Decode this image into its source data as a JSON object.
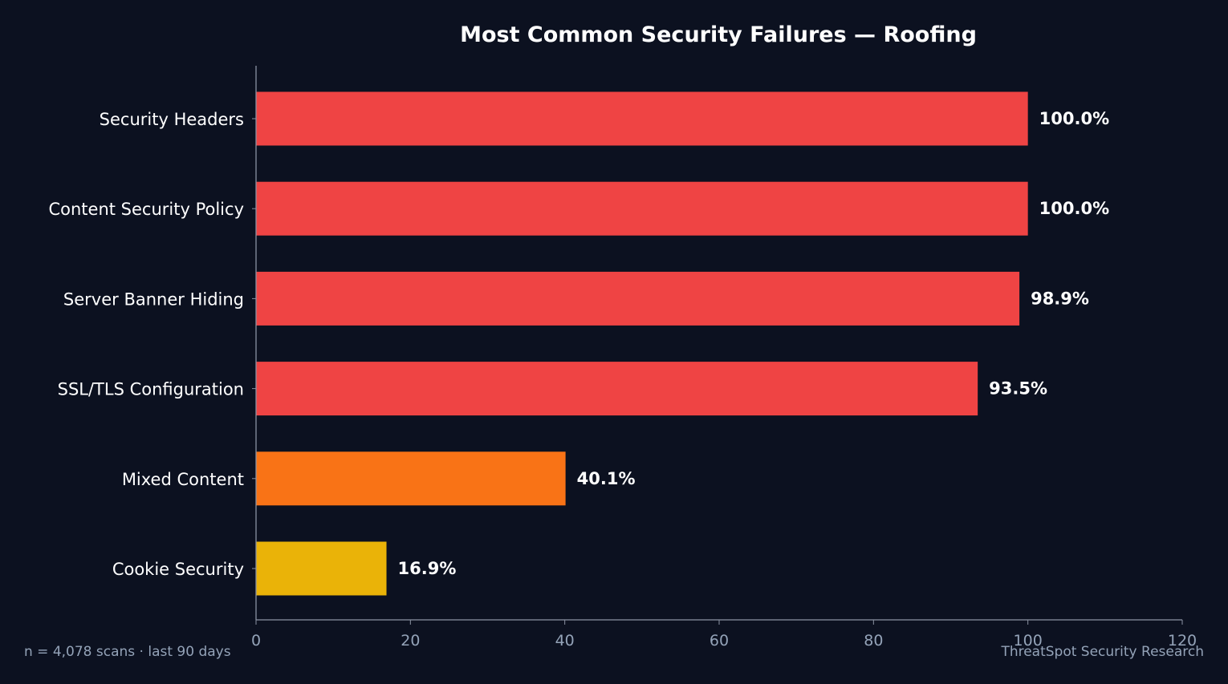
{
  "chart_data": {
    "type": "bar",
    "orientation": "horizontal",
    "title": "Most Common Security Failures — Roofing",
    "xlabel": "",
    "ylabel": "",
    "xlim": [
      0,
      120
    ],
    "x_ticks": [
      0,
      20,
      40,
      60,
      80,
      100,
      120
    ],
    "categories": [
      "Security Headers",
      "Content Security Policy",
      "Server Banner Hiding",
      "SSL/TLS Configuration",
      "Mixed Content",
      "Cookie Security"
    ],
    "values": [
      100.0,
      100.0,
      98.9,
      93.5,
      40.1,
      16.9
    ],
    "value_labels": [
      "100.0%",
      "100.0%",
      "98.9%",
      "93.5%",
      "40.1%",
      "16.9%"
    ],
    "bar_colors": [
      "#ef4444",
      "#ef4444",
      "#ef4444",
      "#ef4444",
      "#f97316",
      "#eab308"
    ],
    "grid": false,
    "legend": "none"
  },
  "footer": {
    "left": "n = 4,078 scans · last 90 days",
    "right": "ThreatSpot Security Research"
  },
  "colors": {
    "background": "#0c1120",
    "axis": "#8b93a3",
    "tick_label": "#94a3b8",
    "text": "#ffffff"
  }
}
